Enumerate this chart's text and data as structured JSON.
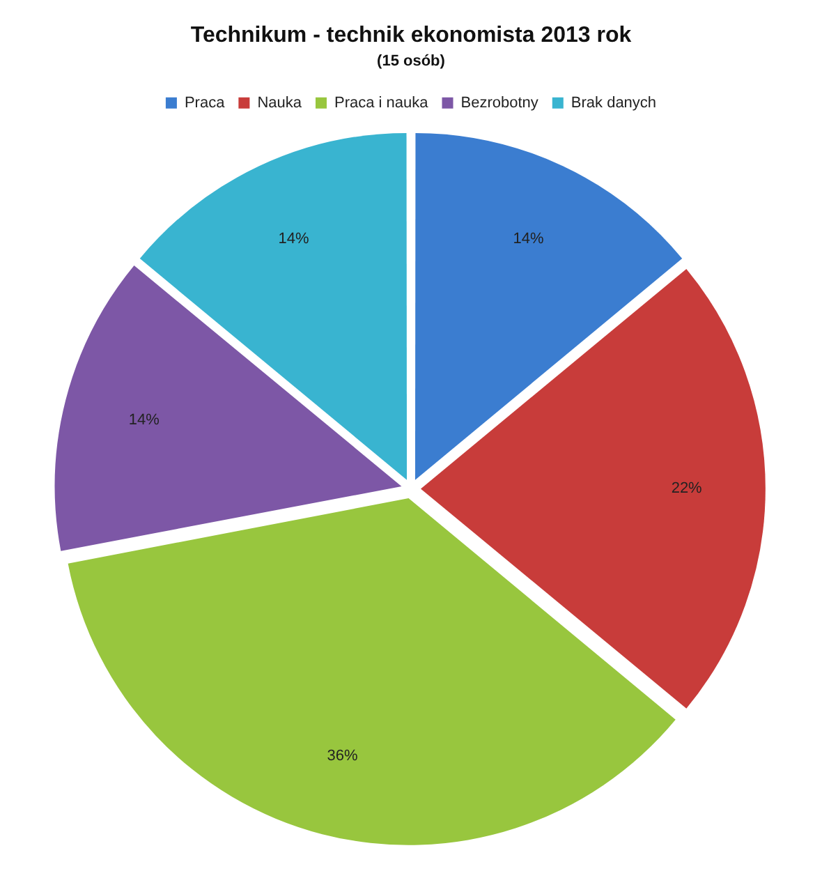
{
  "chart_data": {
    "type": "pie",
    "title": "Technikum - technik ekonomista 2013 rok",
    "subtitle": "(15 osób)",
    "categories": [
      "Praca",
      "Nauka",
      "Praca i nauka",
      "Bezrobotny",
      "Brak danych"
    ],
    "values": [
      14,
      22,
      36,
      14,
      14
    ],
    "colors": [
      "#3b7dd0",
      "#c83c3a",
      "#98c63e",
      "#7d57a6",
      "#39b4d0"
    ],
    "value_labels": [
      "14%",
      "22%",
      "36%",
      "14%",
      "14%"
    ],
    "legend": "top"
  }
}
